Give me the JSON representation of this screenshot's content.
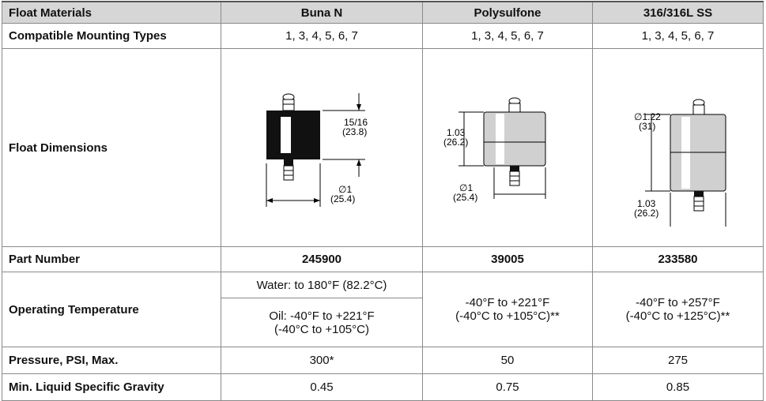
{
  "table": {
    "header": [
      "Float Materials",
      "Buna N",
      "Polysulfone",
      "316/316L SS"
    ],
    "mounting": {
      "label": "Compatible Mounting Types",
      "values": [
        "1, 3, 4, 5, 6, 7",
        "1, 3, 4, 5, 6, 7",
        "1, 3, 4, 5, 6, 7"
      ]
    },
    "dimensions": {
      "label": "Float Dimensions",
      "drawings": [
        {
          "height": "15/16",
          "height_mm": "(23.8)",
          "diameter": "∅1",
          "diameter_mm": "(25.4)"
        },
        {
          "height": "1.03",
          "height_mm": "(26.2)",
          "diameter": "∅1",
          "diameter_mm": "(25.4)"
        },
        {
          "diameter": "∅1.22",
          "diameter_mm": "(31)",
          "height": "1.03",
          "height_mm": "(26.2)"
        }
      ]
    },
    "part_number": {
      "label": "Part Number",
      "values": [
        "245900",
        "39005",
        "233580"
      ]
    },
    "temperature": {
      "label": "Operating Temperature",
      "buna_water": "Water: to 180°F (82.2°C)",
      "buna_oil": [
        "Oil: -40°F to +221°F",
        "(-40°C to +105°C)"
      ],
      "polysulfone": [
        "-40°F to +221°F",
        "(-40°C to +105°C)**"
      ],
      "stainless": [
        "-40°F to +257°F",
        "(-40°C to +125°C)**"
      ]
    },
    "pressure": {
      "label": "Pressure, PSI, Max.",
      "values": [
        "300*",
        "50",
        "275"
      ]
    },
    "gravity": {
      "label": "Min. Liquid Specific Gravity",
      "values": [
        "0.45",
        "0.75",
        "0.85"
      ]
    }
  }
}
